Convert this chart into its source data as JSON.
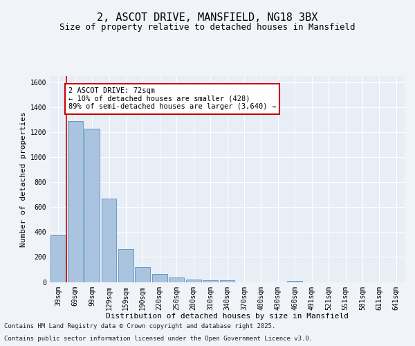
{
  "title": "2, ASCOT DRIVE, MANSFIELD, NG18 3BX",
  "subtitle": "Size of property relative to detached houses in Mansfield",
  "xlabel": "Distribution of detached houses by size in Mansfield",
  "ylabel": "Number of detached properties",
  "footer_line1": "Contains HM Land Registry data © Crown copyright and database right 2025.",
  "footer_line2": "Contains public sector information licensed under the Open Government Licence v3.0.",
  "categories": [
    "39sqm",
    "69sqm",
    "99sqm",
    "129sqm",
    "159sqm",
    "190sqm",
    "220sqm",
    "250sqm",
    "280sqm",
    "310sqm",
    "340sqm",
    "370sqm",
    "400sqm",
    "430sqm",
    "460sqm",
    "491sqm",
    "521sqm",
    "551sqm",
    "581sqm",
    "611sqm",
    "641sqm"
  ],
  "values": [
    375,
    1290,
    1230,
    670,
    265,
    120,
    65,
    35,
    20,
    15,
    15,
    0,
    0,
    0,
    10,
    0,
    0,
    0,
    0,
    0,
    0
  ],
  "bar_color": "#aac4e0",
  "bar_edge_color": "#5a8fc0",
  "bg_color": "#e8eef5",
  "grid_color": "#ffffff",
  "vline_color": "#cc0000",
  "annotation_text": "2 ASCOT DRIVE: 72sqm\n← 10% of detached houses are smaller (428)\n89% of semi-detached houses are larger (3,640) →",
  "annotation_box_color": "#cc0000",
  "ylim": [
    0,
    1650
  ],
  "yticks": [
    0,
    200,
    400,
    600,
    800,
    1000,
    1200,
    1400,
    1600
  ],
  "title_fontsize": 11,
  "subtitle_fontsize": 9,
  "axis_fontsize": 8,
  "tick_fontsize": 7,
  "annotation_fontsize": 7.5,
  "footer_fontsize": 6.5
}
